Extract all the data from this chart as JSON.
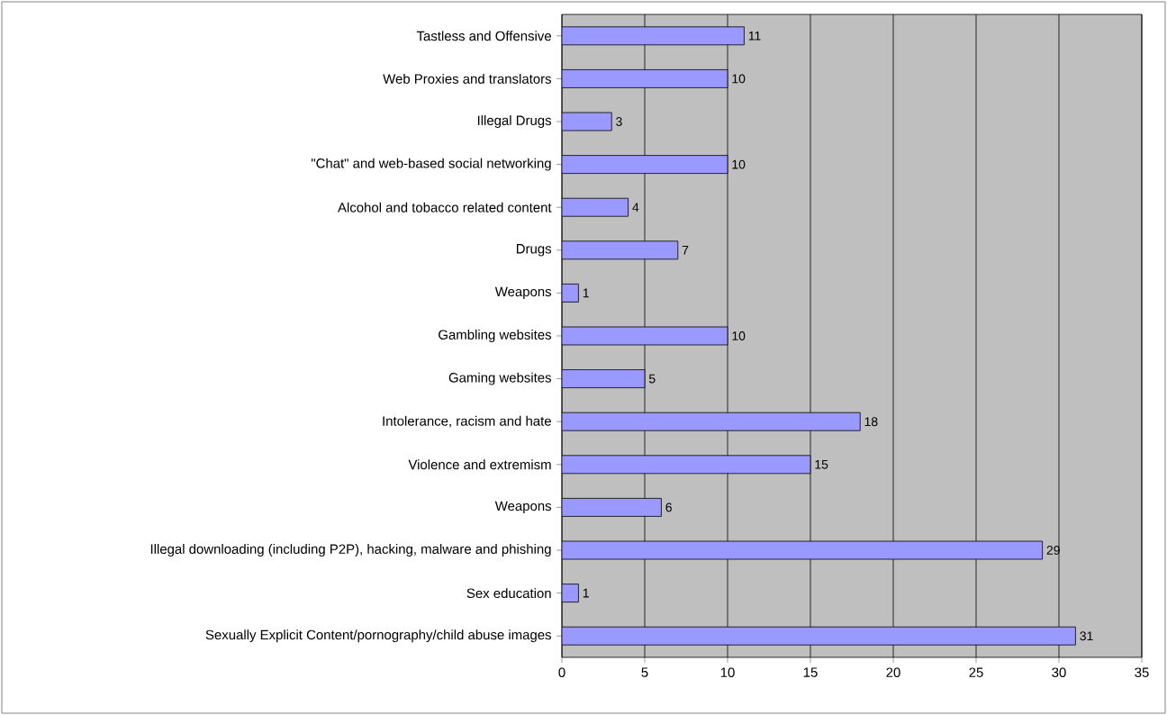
{
  "chart_data": {
    "type": "bar",
    "orientation": "horizontal",
    "categories": [
      "Tastless and Offensive",
      "Web Proxies and translators",
      "Illegal Drugs",
      "\"Chat\" and web-based social networking",
      "Alcohol and tobacco related content",
      "Drugs",
      "Weapons",
      "Gambling websites",
      "Gaming websites",
      "Intolerance, racism and hate",
      "Violence and extremism",
      "Weapons",
      "Illegal downloading (including P2P), hacking, malware and phishing",
      "Sex education",
      "Sexually Explicit Content/pornography/child abuse images"
    ],
    "values": [
      11,
      10,
      3,
      10,
      4,
      7,
      1,
      10,
      5,
      18,
      15,
      6,
      29,
      1,
      31
    ],
    "color": "#9999ff",
    "xlim": [
      0,
      35
    ],
    "xticks": [
      0,
      5,
      10,
      15,
      20,
      25,
      30,
      35
    ],
    "grid": "x",
    "data_labels": true
  }
}
